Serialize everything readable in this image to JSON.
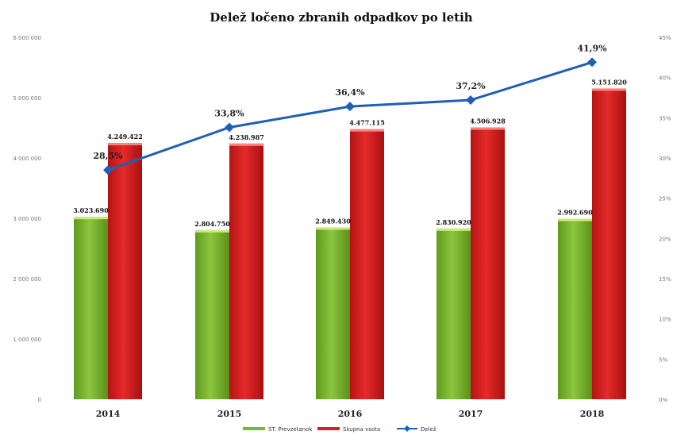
{
  "chart_data": {
    "type": "bar",
    "title": "Delež ločeno zbranih odpadkov po letih",
    "categories": [
      "2014",
      "2015",
      "2016",
      "2017",
      "2018"
    ],
    "ylim": [
      0,
      6000000
    ],
    "y_ticks": [
      "0",
      "1 000 000",
      "2 000 000",
      "3 000 000",
      "4 000 000",
      "5 000 000",
      "6 000 000"
    ],
    "y2lim": [
      0,
      45
    ],
    "y2_ticks": [
      "0%",
      "5%",
      "10%",
      "15%",
      "20%",
      "25%",
      "30%",
      "35%",
      "40%",
      "45%"
    ],
    "grid": false,
    "legend": "bottom",
    "series": [
      {
        "name": "ST. Prevzetanok",
        "type": "bar",
        "color": "#7cb82f",
        "values": [
          3023690,
          2804750,
          2849430,
          2830920,
          2992690
        ],
        "labels": [
          "3.023.690",
          "2.804.750",
          "2.849.430",
          "2.830.920",
          "2.992.690"
        ]
      },
      {
        "name": "Skupna vsota",
        "type": "bar",
        "color": "#d81f1f",
        "values": [
          4249422,
          4238987,
          4477115,
          4506928,
          5151820
        ],
        "labels": [
          "4.249.422",
          "4.238.987",
          "4.477.115",
          "4.506.928",
          "5.151.820"
        ]
      },
      {
        "name": "Delež",
        "type": "line",
        "axis": "right",
        "color": "#1f5fb5",
        "values": [
          28.5,
          33.8,
          36.4,
          37.2,
          41.9
        ],
        "labels": [
          "28,5%",
          "33,8%",
          "36,4%",
          "37,2%",
          "41,9%"
        ]
      }
    ]
  }
}
